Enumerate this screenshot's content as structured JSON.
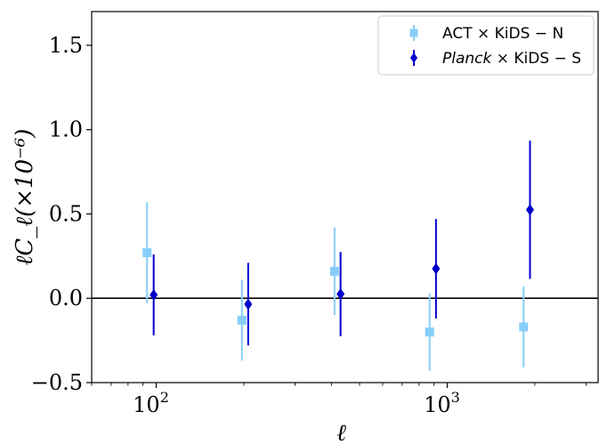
{
  "chart_data": {
    "type": "scatter",
    "title": "",
    "xlabel": "ℓ",
    "ylabel": "ℓC_ℓ(×10⁻⁶)",
    "xscale": "log",
    "xlim": [
      60,
      3300
    ],
    "ylim": [
      -0.5,
      1.7
    ],
    "yticks": [
      -0.5,
      0.0,
      0.5,
      1.0,
      1.5
    ],
    "ytick_labels": [
      "−0.5",
      "0.0",
      "0.5",
      "1.0",
      "1.5"
    ],
    "xticks": [
      {
        "value": 100,
        "base": "10",
        "exp": "2"
      },
      {
        "value": 1000,
        "base": "10",
        "exp": "3"
      }
    ],
    "reference_line_y": 0.0,
    "grid": false,
    "legend_position": "top-right",
    "series": [
      {
        "name": "ACT × KiDS − N",
        "name_parts": {
          "pre": "ACT × KiDS − N",
          "italic": "",
          "post": ""
        },
        "marker": "square",
        "color": "#87cefa",
        "points": [
          {
            "x": 93,
            "y": 0.27,
            "err": 0.3
          },
          {
            "x": 197,
            "y": -0.13,
            "err": 0.24
          },
          {
            "x": 410,
            "y": 0.16,
            "err": 0.26
          },
          {
            "x": 870,
            "y": -0.2,
            "err": 0.23
          },
          {
            "x": 1830,
            "y": -0.17,
            "err": 0.24
          }
        ]
      },
      {
        "name": "Planck × KiDS − S",
        "name_parts": {
          "pre": "",
          "italic": "Planck",
          "post": " × KiDS − S"
        },
        "marker": "diamond",
        "color": "#0000cd",
        "points": [
          {
            "x": 98,
            "y": 0.02,
            "err": 0.24
          },
          {
            "x": 207,
            "y": -0.035,
            "err": 0.245
          },
          {
            "x": 430,
            "y": 0.025,
            "err": 0.25
          },
          {
            "x": 915,
            "y": 0.175,
            "err": 0.295
          },
          {
            "x": 1925,
            "y": 0.525,
            "err": 0.41
          }
        ]
      }
    ]
  }
}
